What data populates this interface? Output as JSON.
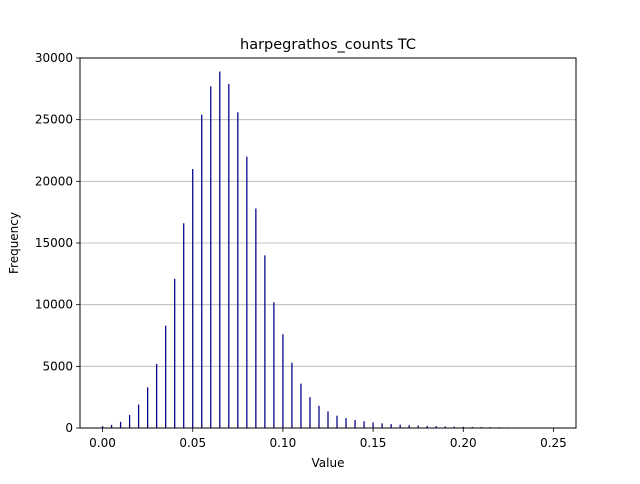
{
  "chart_data": {
    "type": "bar",
    "title": "harpegrathos_counts TC",
    "xlabel": "Value",
    "ylabel": "Frequency",
    "xlim": [
      -0.0125,
      0.2625
    ],
    "ylim": [
      0,
      30000
    ],
    "xticks": [
      "0.00",
      "0.05",
      "0.10",
      "0.15",
      "0.20",
      "0.25"
    ],
    "yticks": [
      "0",
      "5000",
      "10000",
      "15000",
      "20000",
      "25000",
      "30000"
    ],
    "grid": "horizontal",
    "bar_color": "#00008b",
    "x": [
      0.0,
      0.005,
      0.01,
      0.015,
      0.02,
      0.025,
      0.03,
      0.035,
      0.04,
      0.045,
      0.05,
      0.055,
      0.06,
      0.065,
      0.07,
      0.075,
      0.08,
      0.085,
      0.09,
      0.095,
      0.1,
      0.105,
      0.11,
      0.115,
      0.12,
      0.125,
      0.13,
      0.135,
      0.14,
      0.145,
      0.15,
      0.155,
      0.16,
      0.165,
      0.17,
      0.175,
      0.18,
      0.185,
      0.19,
      0.195,
      0.2,
      0.205,
      0.21,
      0.215,
      0.22,
      0.225,
      0.23,
      0.235,
      0.24,
      0.245,
      0.25
    ],
    "values": [
      150,
      250,
      500,
      1050,
      1900,
      3300,
      5200,
      8300,
      12100,
      16600,
      21000,
      25400,
      27700,
      28900,
      27900,
      25600,
      22000,
      17800,
      14000,
      10200,
      7600,
      5300,
      3600,
      2500,
      1800,
      1350,
      1000,
      800,
      650,
      550,
      450,
      380,
      320,
      270,
      230,
      200,
      170,
      150,
      130,
      110,
      100,
      90,
      80,
      70,
      60,
      50,
      45,
      40,
      35,
      30,
      25
    ]
  }
}
